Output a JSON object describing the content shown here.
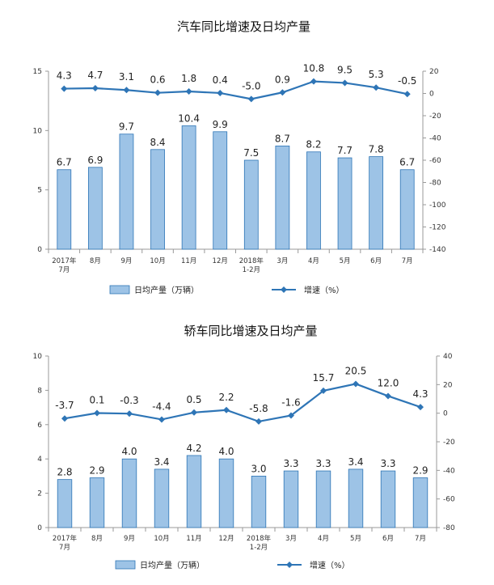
{
  "chart_data": [
    {
      "type": "bar+line",
      "title": "汽车同比增速及日均产量",
      "categories": [
        [
          "2017年",
          "7月"
        ],
        [
          "8月"
        ],
        [
          "9月"
        ],
        [
          "10月"
        ],
        [
          "11月"
        ],
        [
          "12月"
        ],
        [
          "2018年",
          "1-2月"
        ],
        [
          "3月"
        ],
        [
          "4月"
        ],
        [
          "5月"
        ],
        [
          "6月"
        ],
        [
          "7月"
        ]
      ],
      "series": [
        {
          "name": "日均产量（万辆）",
          "type": "bar",
          "axis": "left",
          "values": [
            6.7,
            6.9,
            9.7,
            8.4,
            10.4,
            9.9,
            7.5,
            8.7,
            8.2,
            7.7,
            7.8,
            6.7
          ],
          "labels": [
            "6.7",
            "6.9",
            "9.7",
            "8.4",
            "10.4",
            "9.9",
            "7.5",
            "8.7",
            "8.2",
            "7.7",
            "7.8",
            "6.7"
          ]
        },
        {
          "name": "增速（%）",
          "type": "line",
          "axis": "right",
          "values": [
            4.3,
            4.7,
            3.1,
            0.6,
            1.8,
            0.4,
            -5.0,
            0.9,
            10.8,
            9.5,
            5.3,
            -0.5
          ],
          "labels": [
            "4.3",
            "4.7",
            "3.1",
            "0.6",
            "1.8",
            "0.4",
            "-5.0",
            "0.9",
            "10.8",
            "9.5",
            "5.3",
            "-0.5"
          ]
        }
      ],
      "ylim_left": [
        0,
        15
      ],
      "yticks_left": [
        "0",
        "5",
        "10",
        "15"
      ],
      "ylim_right": [
        -140,
        20
      ],
      "yticks_right": [
        "-140",
        "-120",
        "-100",
        "-80",
        "-60",
        "-40",
        "-20",
        "0",
        "20"
      ],
      "legend": "bottom",
      "colors": {
        "bar_fill": "#9dc3e6",
        "bar_stroke": "#2e75b6",
        "line": "#2e75b6"
      }
    },
    {
      "type": "bar+line",
      "title": "轿车同比增速及日均产量",
      "categories": [
        [
          "2017年",
          "7月"
        ],
        [
          "8月"
        ],
        [
          "9月"
        ],
        [
          "10月"
        ],
        [
          "11月"
        ],
        [
          "12月"
        ],
        [
          "2018年",
          "1-2月"
        ],
        [
          "3月"
        ],
        [
          "4月"
        ],
        [
          "5月"
        ],
        [
          "6月"
        ],
        [
          "7月"
        ]
      ],
      "series": [
        {
          "name": "日均产量（万辆）",
          "type": "bar",
          "axis": "left",
          "values": [
            2.8,
            2.9,
            4.0,
            3.4,
            4.2,
            4.0,
            3.0,
            3.3,
            3.3,
            3.4,
            3.3,
            2.9
          ],
          "labels": [
            "2.8",
            "2.9",
            "4.0",
            "3.4",
            "4.2",
            "4.0",
            "3.0",
            "3.3",
            "3.3",
            "3.4",
            "3.3",
            "2.9"
          ]
        },
        {
          "name": "增速（%）",
          "type": "line",
          "axis": "right",
          "values": [
            -3.7,
            0.1,
            -0.3,
            -4.4,
            0.5,
            2.2,
            -5.8,
            -1.6,
            15.7,
            20.5,
            12.0,
            4.3
          ],
          "labels": [
            "-3.7",
            "0.1",
            "-0.3",
            "-4.4",
            "0.5",
            "2.2",
            "-5.8",
            "-1.6",
            "15.7",
            "20.5",
            "12.0",
            "4.3"
          ]
        }
      ],
      "ylim_left": [
        0,
        10
      ],
      "yticks_left": [
        "0",
        "2",
        "4",
        "6",
        "8",
        "10"
      ],
      "ylim_right": [
        -80,
        40
      ],
      "yticks_right": [
        "-80",
        "-60",
        "-40",
        "-20",
        "0",
        "20",
        "40"
      ],
      "legend": "bottom",
      "colors": {
        "bar_fill": "#9dc3e6",
        "bar_stroke": "#2e75b6",
        "line": "#2e75b6"
      }
    }
  ]
}
